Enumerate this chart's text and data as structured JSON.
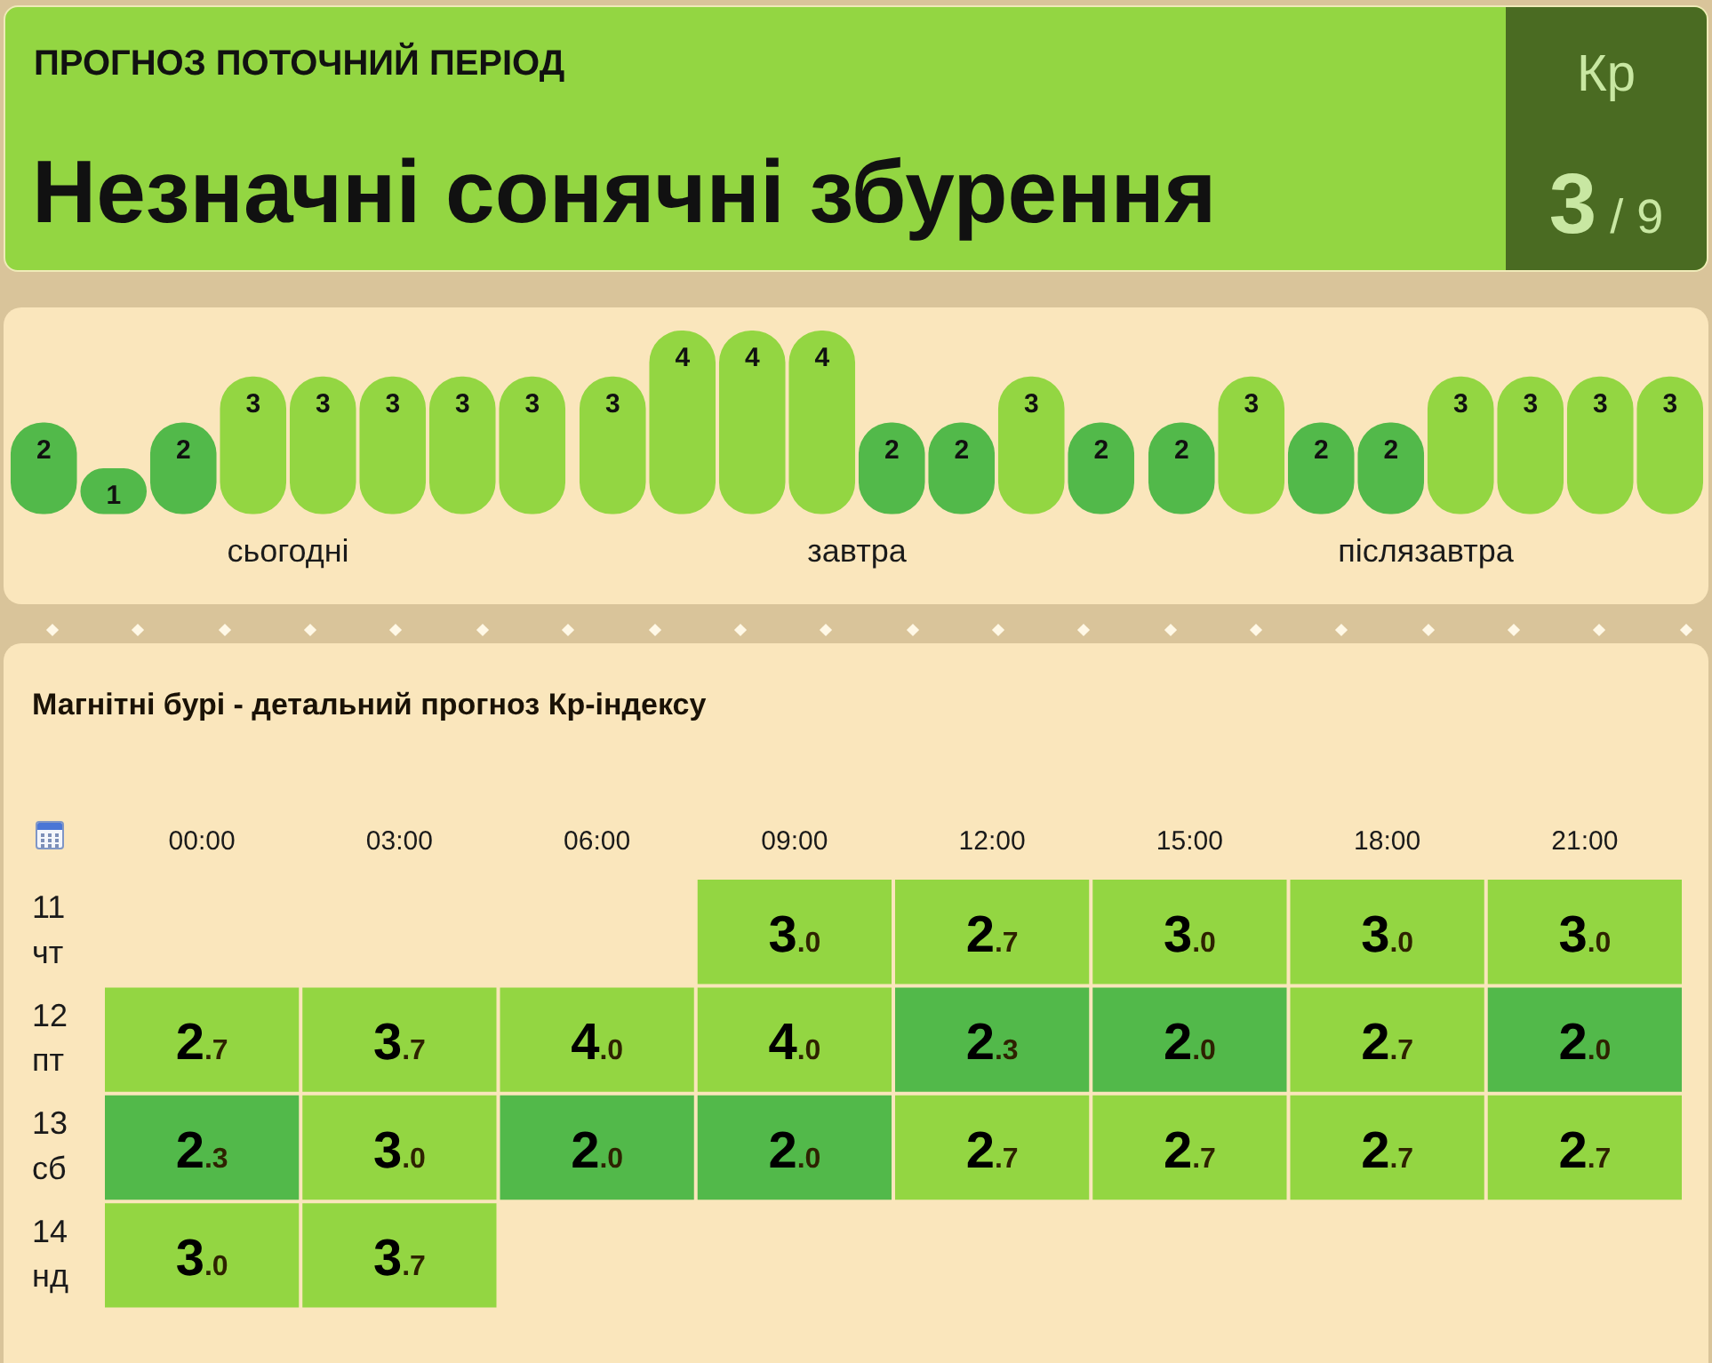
{
  "chart_data": [
    {
      "type": "other",
      "title": "ПРОГНОЗ ПОТОЧНИЙ ПЕРІОД",
      "subtitle": "Незначні сонячні збурення",
      "annotations": [
        "Кр",
        "3 / 9"
      ]
    },
    {
      "type": "bar",
      "categories": [
        null,
        null,
        null,
        null,
        null,
        null,
        null,
        null
      ],
      "values": [
        2,
        1,
        2,
        3,
        3,
        3,
        3,
        3
      ],
      "colors": [
        "#52b94a",
        "#52b94a",
        "#52b94a",
        "#93d642",
        "#93d642",
        "#93d642",
        "#93d642",
        "#93d642"
      ],
      "data_labels": true,
      "tick_labels": false,
      "xlabel": "сьогодні"
    },
    {
      "type": "bar",
      "categories": [
        null,
        null,
        null,
        null,
        null,
        null,
        null,
        null
      ],
      "values": [
        3,
        4,
        4,
        4,
        2,
        2,
        3,
        2
      ],
      "colors": [
        "#93d642",
        "#93d642",
        "#93d642",
        "#93d642",
        "#52b94a",
        "#52b94a",
        "#93d642",
        "#52b94a"
      ],
      "data_labels": true,
      "tick_labels": false,
      "xlabel": "завтра"
    },
    {
      "type": "bar",
      "categories": [
        null,
        null,
        null,
        null,
        null,
        null,
        null,
        null
      ],
      "values": [
        2,
        3,
        2,
        2,
        3,
        3,
        3,
        3
      ],
      "colors": [
        "#52b94a",
        "#93d642",
        "#52b94a",
        "#52b94a",
        "#93d642",
        "#93d642",
        "#93d642",
        "#93d642"
      ],
      "data_labels": true,
      "tick_labels": false,
      "xlabel": "післязавтра"
    },
    {
      "type": "heatmap",
      "title": "Магнітні бурі - детальний прогноз Кр-індексу",
      "categories": [
        "00:00",
        "03:00",
        "06:00",
        "09:00",
        "12:00",
        "15:00",
        "18:00",
        "21:00"
      ],
      "y_categories": [
        "11 чт",
        "12 пт",
        "13 сб",
        "14 нд"
      ],
      "cells": [
        [
          null,
          null,
          null,
          3.0,
          2.7,
          3.0,
          3.0,
          3.0
        ],
        [
          2.7,
          3.7,
          4.0,
          4.0,
          2.3,
          2.0,
          2.7,
          2.0
        ],
        [
          2.3,
          3.0,
          2.0,
          2.0,
          2.7,
          2.7,
          2.7,
          2.7
        ],
        [
          3.0,
          3.7,
          null,
          null,
          null,
          null,
          null,
          null
        ]
      ],
      "cell_labels": [
        [
          null,
          null,
          null,
          "3.0",
          "2.7",
          "3.0",
          "3.0",
          "3.0"
        ],
        [
          "2.7",
          "3.7",
          "4.0",
          "4.0",
          "2.3",
          "2.0",
          "2.7",
          "2.0"
        ],
        [
          "2.3",
          "3.0",
          "2.0",
          "2.0",
          "2.7",
          "2.7",
          "2.7",
          "2.7"
        ],
        [
          "3.0",
          "3.7",
          null,
          null,
          null,
          null,
          null,
          null
        ]
      ],
      "colors": [
        [
          null,
          null,
          null,
          "#93d642",
          "#93d642",
          "#93d642",
          "#93d642",
          "#93d642"
        ],
        [
          "#93d642",
          "#93d642",
          "#93d642",
          "#93d642",
          "#52b94a",
          "#52b94a",
          "#93d642",
          "#52b94a"
        ],
        [
          "#52b94a",
          "#93d642",
          "#52b94a",
          "#52b94a",
          "#93d642",
          "#93d642",
          "#93d642",
          "#93d642"
        ],
        [
          "#93d642",
          "#93d642",
          null,
          null,
          null,
          null,
          null,
          null
        ]
      ]
    }
  ]
}
